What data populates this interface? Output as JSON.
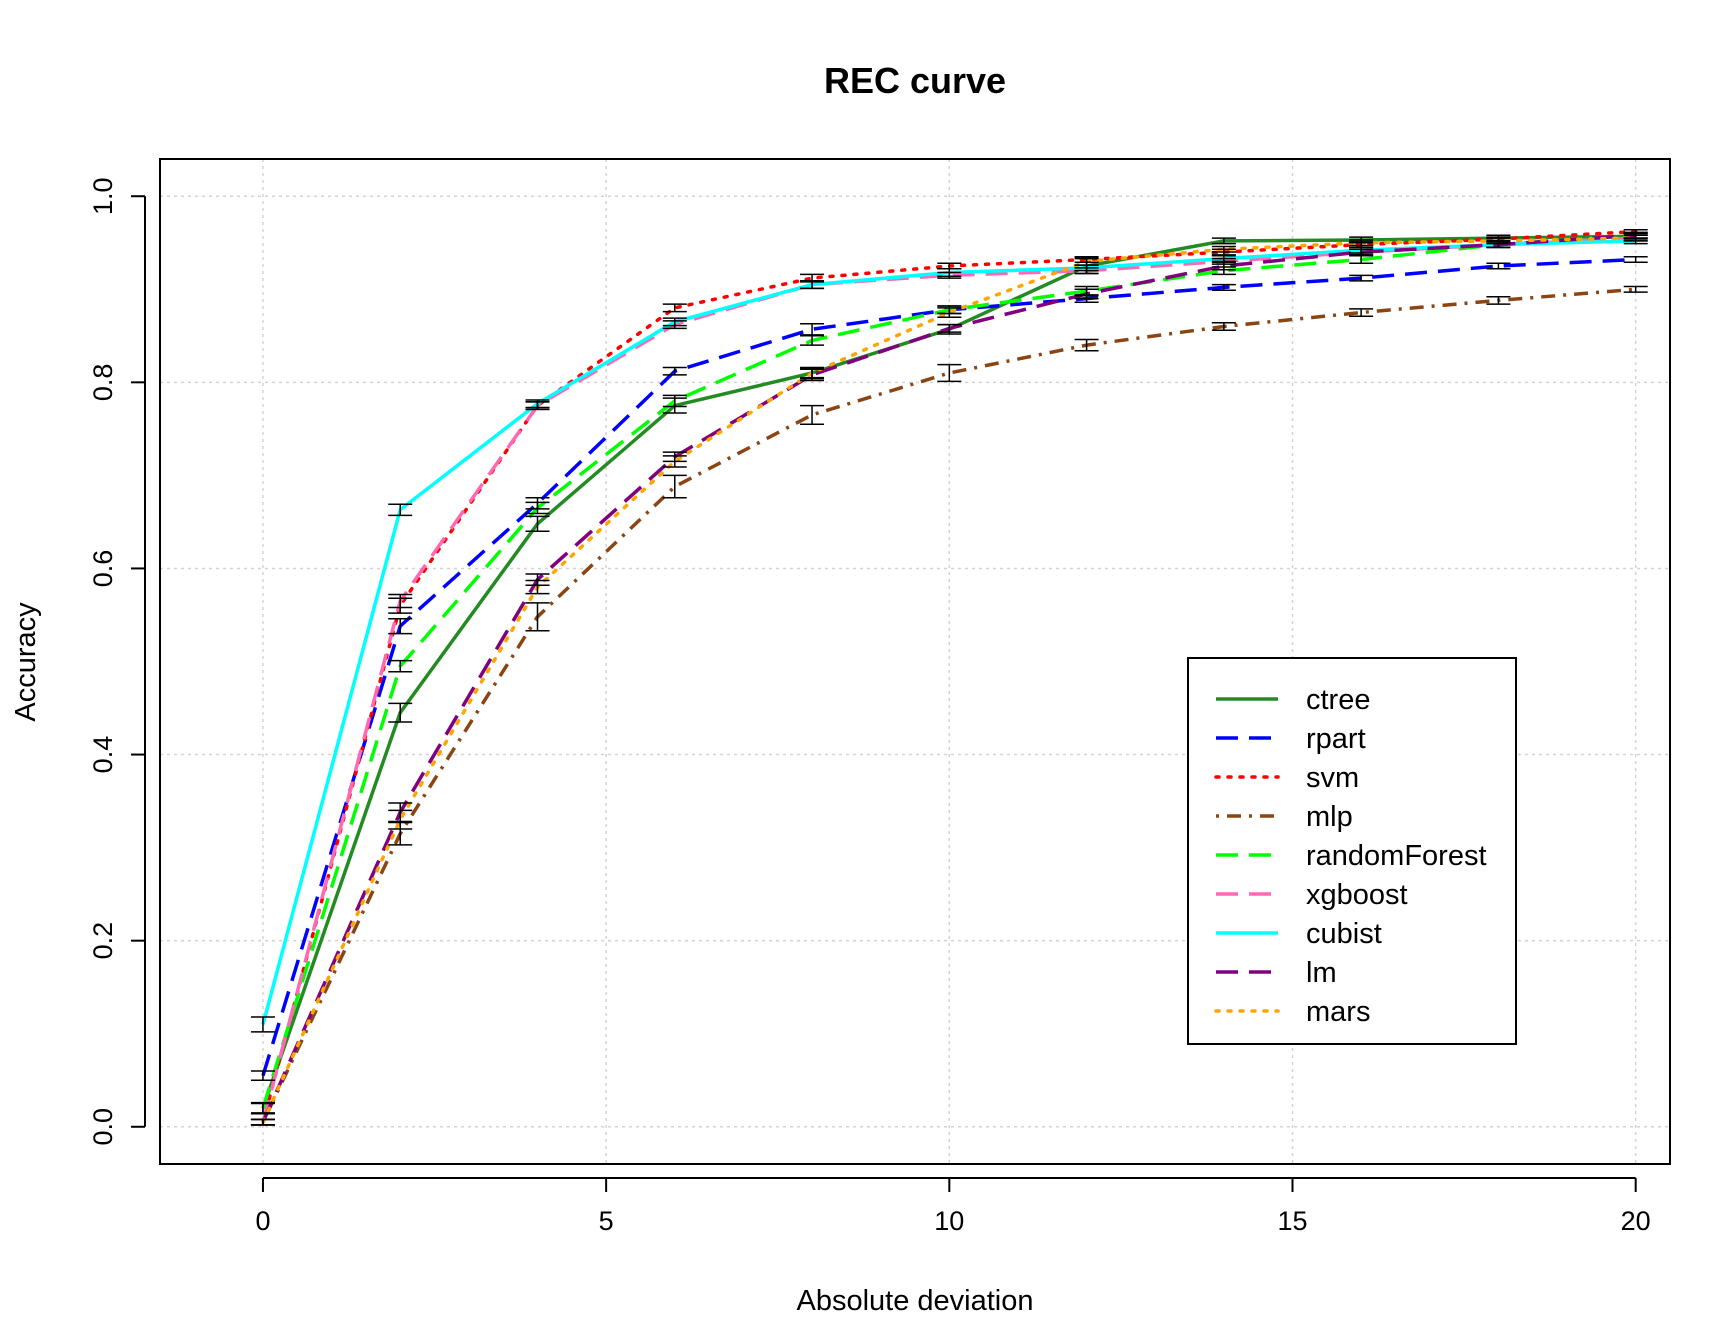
{
  "chart_data": {
    "type": "line",
    "title": "REC curve",
    "xlabel": "Absolute deviation",
    "ylabel": "Accuracy",
    "xlim": [
      -1.5,
      20.5
    ],
    "ylim": [
      -0.04,
      1.04
    ],
    "xticks": [
      0,
      5,
      10,
      15,
      20
    ],
    "yticks": [
      0.0,
      0.2,
      0.4,
      0.6,
      0.8,
      1.0
    ],
    "xtick_labels": [
      "0",
      "5",
      "10",
      "15",
      "20"
    ],
    "ytick_labels": [
      "0.0",
      "0.2",
      "0.4",
      "0.6",
      "0.8",
      "1.0"
    ],
    "grid": true,
    "legend_position": "bottom-right",
    "x": [
      0,
      2,
      4,
      6,
      8,
      10,
      12,
      14,
      16,
      18,
      20
    ],
    "series": [
      {
        "name": "ctree",
        "color": "#228B22",
        "dash": "solid",
        "values": [
          0.02,
          0.445,
          0.648,
          0.775,
          0.81,
          0.857,
          0.925,
          0.952,
          0.953,
          0.955,
          0.957
        ],
        "errors": [
          0.006,
          0.01,
          0.008,
          0.008,
          0.005,
          0.005,
          0.008,
          0.003,
          0.003,
          0.003,
          0.003
        ]
      },
      {
        "name": "rpart",
        "color": "#0000FF",
        "dash": "longdash",
        "values": [
          0.055,
          0.538,
          0.67,
          0.812,
          0.857,
          0.878,
          0.89,
          0.902,
          0.912,
          0.925,
          0.932
        ],
        "errors": [
          0.005,
          0.008,
          0.006,
          0.004,
          0.006,
          0.004,
          0.004,
          0.003,
          0.003,
          0.003,
          0.003
        ]
      },
      {
        "name": "svm",
        "color": "#FF0000",
        "dash": "dotted",
        "values": [
          0.005,
          0.56,
          0.775,
          0.88,
          0.912,
          0.925,
          0.932,
          0.94,
          0.948,
          0.954,
          0.962
        ],
        "errors": [
          0.003,
          0.008,
          0.004,
          0.004,
          0.004,
          0.003,
          0.003,
          0.003,
          0.003,
          0.002,
          0.002
        ]
      },
      {
        "name": "mlp",
        "color": "#8B4513",
        "dash": "dotdash",
        "values": [
          0.005,
          0.315,
          0.548,
          0.688,
          0.765,
          0.81,
          0.84,
          0.86,
          0.875,
          0.888,
          0.9
        ],
        "errors": [
          0.003,
          0.012,
          0.015,
          0.012,
          0.01,
          0.009,
          0.006,
          0.004,
          0.004,
          0.004,
          0.003
        ]
      },
      {
        "name": "randomForest",
        "color": "#00FF00",
        "dash": "longdash",
        "values": [
          0.02,
          0.495,
          0.665,
          0.78,
          0.845,
          0.878,
          0.898,
          0.92,
          0.932,
          0.948,
          0.958
        ],
        "errors": [
          0.005,
          0.006,
          0.006,
          0.006,
          0.005,
          0.004,
          0.005,
          0.004,
          0.004,
          0.003,
          0.003
        ]
      },
      {
        "name": "xgboost",
        "color": "#FF69B4",
        "dash": "longdash",
        "values": [
          0.005,
          0.565,
          0.775,
          0.862,
          0.905,
          0.915,
          0.92,
          0.93,
          0.94,
          0.948,
          0.955
        ],
        "errors": [
          0.003,
          0.007,
          0.004,
          0.004,
          0.004,
          0.003,
          0.003,
          0.003,
          0.003,
          0.003,
          0.003
        ]
      },
      {
        "name": "cubist",
        "color": "#00FFFF",
        "dash": "solid",
        "values": [
          0.11,
          0.663,
          0.777,
          0.865,
          0.905,
          0.918,
          0.923,
          0.933,
          0.942,
          0.948,
          0.952
        ],
        "errors": [
          0.008,
          0.006,
          0.004,
          0.004,
          0.004,
          0.004,
          0.003,
          0.003,
          0.003,
          0.003,
          0.003
        ]
      },
      {
        "name": "lm",
        "color": "#800080",
        "dash": "longdash",
        "values": [
          0.005,
          0.338,
          0.588,
          0.72,
          0.808,
          0.858,
          0.895,
          0.925,
          0.94,
          0.948,
          0.958
        ],
        "errors": [
          0.003,
          0.01,
          0.006,
          0.005,
          0.006,
          0.004,
          0.005,
          0.004,
          0.003,
          0.003,
          0.003
        ]
      },
      {
        "name": "mars",
        "color": "#FFA500",
        "dash": "dotted",
        "values": [
          0.005,
          0.33,
          0.58,
          0.715,
          0.81,
          0.875,
          0.93,
          0.943,
          0.95,
          0.952,
          0.955
        ],
        "errors": [
          0.003,
          0.01,
          0.007,
          0.006,
          0.006,
          0.005,
          0.004,
          0.003,
          0.003,
          0.003,
          0.003
        ]
      }
    ]
  }
}
